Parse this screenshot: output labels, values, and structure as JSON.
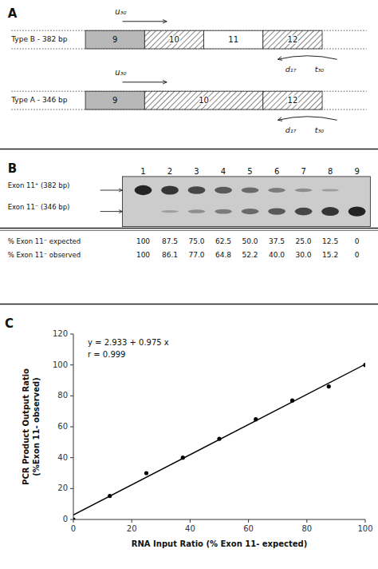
{
  "chart_data": [
    {
      "type": "diagram",
      "title": "A",
      "rows": [
        {
          "label": "Type B - 382 bp",
          "forward_primer": "u₃₀",
          "reverse_primer": [
            "d₁₇",
            "t₃₀"
          ],
          "exons": [
            {
              "name": "9",
              "color": "#b8b8b8"
            },
            {
              "name": "10",
              "color": "hatch"
            },
            {
              "name": "11",
              "color": "#ffffff"
            },
            {
              "name": "12",
              "color": "hatch"
            }
          ]
        },
        {
          "label": "Type A - 346 bp",
          "forward_primer": "u₃₀",
          "reverse_primer": [
            "d₁₇",
            "t₃₀"
          ],
          "exons": [
            {
              "name": "9",
              "color": "#b8b8b8"
            },
            {
              "name": "10",
              "color": "hatch"
            },
            {
              "name": "12",
              "color": "hatch"
            }
          ]
        }
      ]
    },
    {
      "type": "gel",
      "title": "B",
      "lanes": [
        "1",
        "2",
        "3",
        "4",
        "5",
        "6",
        "7",
        "8",
        "9"
      ],
      "bands": [
        "Exon 11⁺ (382 bp)",
        "Exon 11⁻ (346 bp)"
      ],
      "expected": {
        "label": "% Exon 11⁻ expected",
        "values": [
          100,
          87.5,
          75.0,
          62.5,
          50.0,
          37.5,
          25.0,
          12.5,
          0
        ],
        "value_labels": [
          "100",
          "87.5",
          "75.0",
          "62.5",
          "50.0",
          "37.5",
          "25.0",
          "12.5",
          "0"
        ]
      },
      "observed": {
        "label": "% Exon 11⁻ observed",
        "cells": [
          "100",
          "86.1",
          "77.0",
          "64.8",
          "52.2",
          "40.0",
          "30.0",
          "15.2",
          "0"
        ]
      }
    },
    {
      "type": "scatter",
      "title": "C",
      "series": [
        {
          "type": "scatter",
          "color": "#000000",
          "marker": "circle",
          "x": [
            0,
            12.5,
            25.0,
            37.5,
            50.0,
            62.5,
            75.0,
            87.5,
            100
          ],
          "values": [
            0,
            15.2,
            30.0,
            40.0,
            52.2,
            64.8,
            77.0,
            86.1,
            100
          ]
        },
        {
          "type": "line",
          "color": "#000000",
          "line_style": "solid",
          "x": [
            0,
            100
          ],
          "values": [
            2.933,
            100.433
          ]
        }
      ],
      "annotations": [
        "y = 2.933 + 0.975 x",
        "r = 0.999"
      ],
      "xlabel": "RNA Input Ratio (% Exon 11- expected)",
      "ylabel": "PCR Product Output Ratio\n(%Exon 11- observed)",
      "xlim": [
        0,
        100
      ],
      "ylim": [
        0,
        120
      ],
      "xticks": [
        0,
        20,
        40,
        60,
        80,
        100
      ],
      "yticks": [
        0,
        20,
        40,
        60,
        80,
        100,
        120
      ],
      "grid": false
    }
  ]
}
